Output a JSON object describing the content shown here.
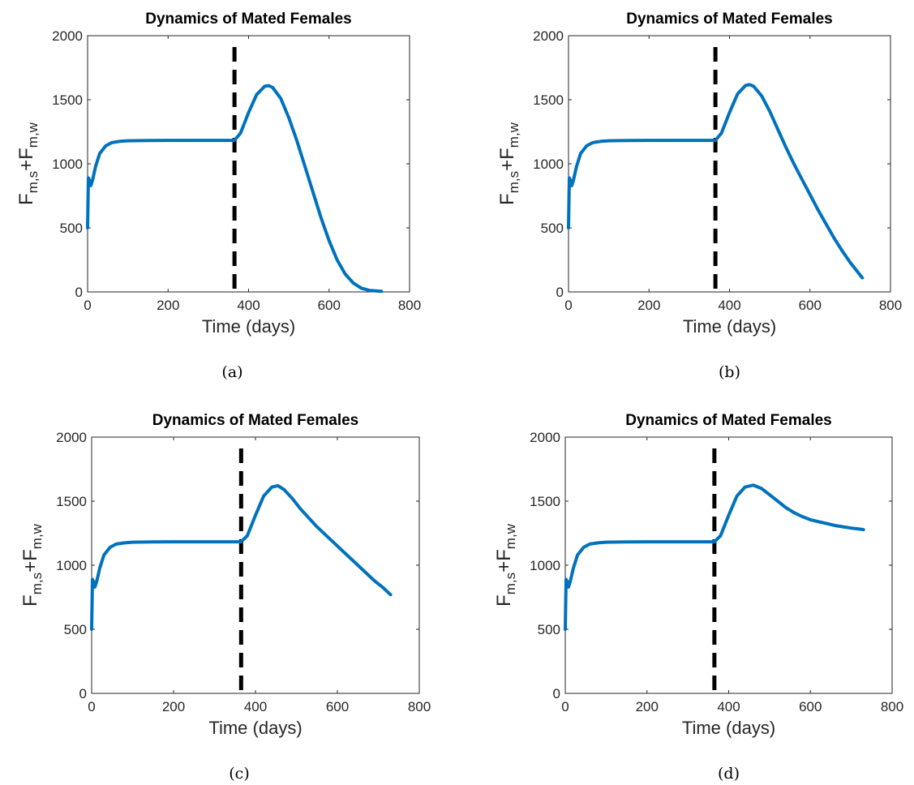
{
  "chart_data": [
    {
      "type": "line",
      "panel": "(a)",
      "title": "Dynamics of Mated Females",
      "xlabel": "Time (days)",
      "ylabel": "F_{m,s}+F_{m,w}",
      "ylabel_parts": [
        "F",
        "m,s",
        "+F",
        "m,w"
      ],
      "xlim": [
        0,
        800
      ],
      "ylim": [
        0,
        2000
      ],
      "xticks": [
        0,
        200,
        400,
        600,
        800
      ],
      "yticks": [
        0,
        500,
        1000,
        1500,
        2000
      ],
      "vline_x": 365,
      "series": [
        {
          "x": [
            0,
            2,
            5,
            8,
            12,
            20,
            30,
            45,
            60,
            80,
            100,
            150,
            200,
            250,
            300,
            350,
            365,
            380,
            400,
            420,
            440,
            450,
            460,
            480,
            500,
            520,
            540,
            560,
            580,
            600,
            620,
            640,
            660,
            680,
            700,
            730
          ],
          "y": [
            500,
            890,
            870,
            830,
            870,
            980,
            1080,
            1140,
            1165,
            1175,
            1180,
            1182,
            1183,
            1183,
            1183,
            1183,
            1183,
            1240,
            1400,
            1540,
            1605,
            1610,
            1595,
            1510,
            1360,
            1180,
            980,
            780,
            580,
            400,
            250,
            140,
            70,
            30,
            12,
            5
          ]
        }
      ]
    },
    {
      "type": "line",
      "panel": "(b)",
      "title": "Dynamics of Mated Females",
      "xlabel": "Time (days)",
      "ylabel": "F_{m,s}+F_{m,w}",
      "ylabel_parts": [
        "F",
        "m,s",
        "+F",
        "m,w"
      ],
      "xlim": [
        0,
        800
      ],
      "ylim": [
        0,
        2000
      ],
      "xticks": [
        0,
        200,
        400,
        600,
        800
      ],
      "yticks": [
        0,
        500,
        1000,
        1500,
        2000
      ],
      "vline_x": 365,
      "series": [
        {
          "x": [
            0,
            2,
            5,
            8,
            12,
            20,
            30,
            45,
            60,
            80,
            100,
            150,
            200,
            250,
            300,
            350,
            365,
            380,
            400,
            420,
            440,
            450,
            460,
            480,
            500,
            520,
            540,
            560,
            580,
            600,
            620,
            640,
            660,
            680,
            700,
            730
          ],
          "y": [
            500,
            890,
            870,
            830,
            870,
            980,
            1080,
            1140,
            1165,
            1175,
            1180,
            1182,
            1183,
            1183,
            1183,
            1183,
            1183,
            1240,
            1400,
            1545,
            1612,
            1618,
            1605,
            1530,
            1410,
            1270,
            1130,
            1000,
            880,
            760,
            640,
            530,
            420,
            320,
            230,
            110
          ]
        }
      ]
    },
    {
      "type": "line",
      "panel": "(c)",
      "title": "Dynamics of Mated Females",
      "xlabel": "Time (days)",
      "ylabel": "F_{m,s}+F_{m,w}",
      "ylabel_parts": [
        "F",
        "m,s",
        "+F",
        "m,w"
      ],
      "xlim": [
        0,
        800
      ],
      "ylim": [
        0,
        2000
      ],
      "xticks": [
        0,
        200,
        400,
        600,
        800
      ],
      "yticks": [
        0,
        500,
        1000,
        1500,
        2000
      ],
      "vline_x": 365,
      "series": [
        {
          "x": [
            0,
            2,
            5,
            8,
            12,
            20,
            30,
            45,
            60,
            80,
            100,
            150,
            200,
            250,
            300,
            350,
            365,
            380,
            400,
            420,
            440,
            455,
            470,
            490,
            510,
            530,
            550,
            570,
            590,
            610,
            630,
            650,
            670,
            690,
            710,
            730
          ],
          "y": [
            500,
            890,
            870,
            830,
            870,
            980,
            1080,
            1140,
            1165,
            1175,
            1180,
            1182,
            1183,
            1183,
            1183,
            1183,
            1183,
            1230,
            1390,
            1540,
            1610,
            1620,
            1590,
            1520,
            1440,
            1370,
            1300,
            1240,
            1180,
            1120,
            1060,
            1000,
            940,
            880,
            830,
            770
          ]
        }
      ]
    },
    {
      "type": "line",
      "panel": "(d)",
      "title": "Dynamics of Mated Females",
      "xlabel": "Time (days)",
      "ylabel": "F_{m,s}+F_{m,w}",
      "ylabel_parts": [
        "F",
        "m,s",
        "+F",
        "m,w"
      ],
      "xlim": [
        0,
        800
      ],
      "ylim": [
        0,
        2000
      ],
      "xticks": [
        0,
        200,
        400,
        600,
        800
      ],
      "yticks": [
        0,
        500,
        1000,
        1500,
        2000
      ],
      "vline_x": 365,
      "series": [
        {
          "x": [
            0,
            2,
            5,
            8,
            12,
            20,
            30,
            45,
            60,
            80,
            100,
            150,
            200,
            250,
            300,
            350,
            365,
            380,
            400,
            420,
            440,
            460,
            480,
            500,
            520,
            540,
            560,
            580,
            600,
            620,
            640,
            660,
            680,
            700,
            720,
            730
          ],
          "y": [
            500,
            890,
            870,
            830,
            870,
            980,
            1080,
            1140,
            1165,
            1175,
            1180,
            1182,
            1183,
            1183,
            1183,
            1183,
            1183,
            1230,
            1390,
            1540,
            1610,
            1625,
            1600,
            1550,
            1500,
            1450,
            1410,
            1380,
            1355,
            1340,
            1325,
            1310,
            1300,
            1290,
            1282,
            1278
          ]
        }
      ]
    }
  ]
}
